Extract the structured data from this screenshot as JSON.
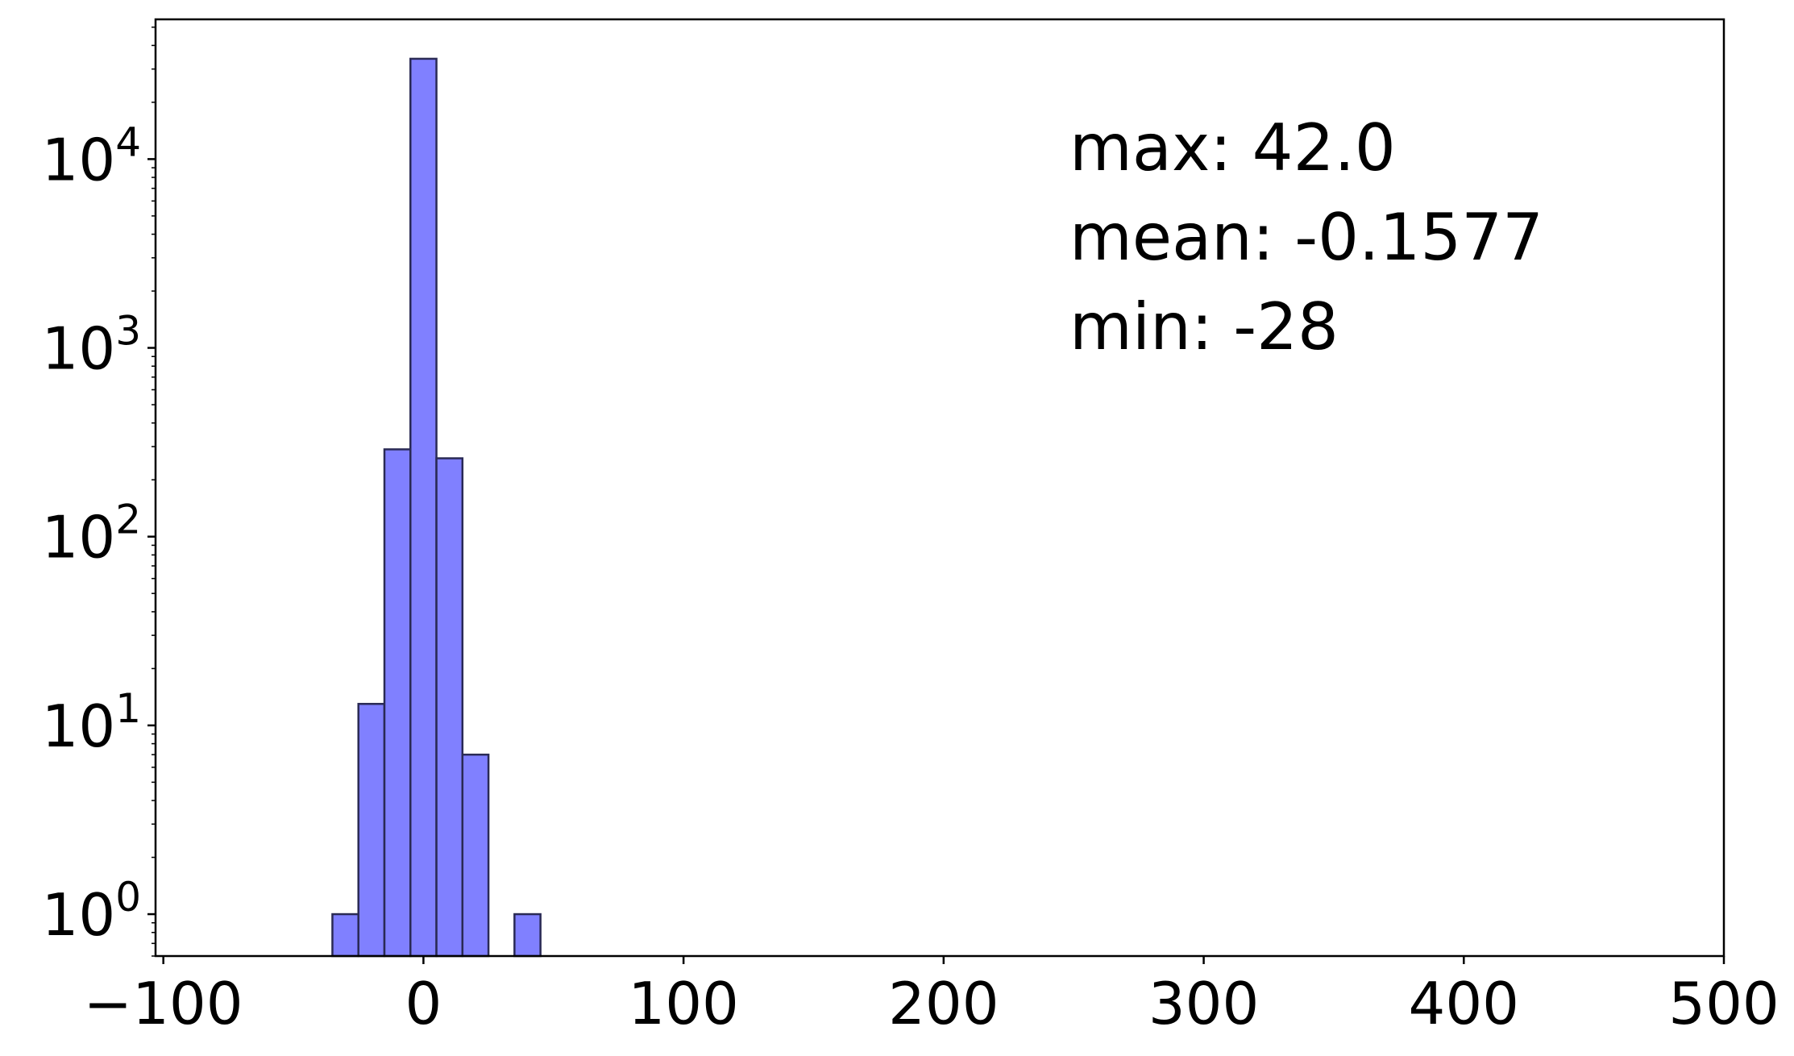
{
  "chart_data": {
    "type": "bar",
    "yscale": "log",
    "xlim": [
      -103,
      500
    ],
    "ylim": [
      0.6,
      55000
    ],
    "x_ticks": [
      {
        "value": -100,
        "label": "−100"
      },
      {
        "value": 0,
        "label": "0"
      },
      {
        "value": 100,
        "label": "100"
      },
      {
        "value": 200,
        "label": "200"
      },
      {
        "value": 300,
        "label": "300"
      },
      {
        "value": 400,
        "label": "400"
      },
      {
        "value": 500,
        "label": "500"
      }
    ],
    "y_ticks": [
      {
        "value": 1,
        "base": "10",
        "exp": "0"
      },
      {
        "value": 10,
        "base": "10",
        "exp": "1"
      },
      {
        "value": 100,
        "base": "10",
        "exp": "2"
      },
      {
        "value": 1000,
        "base": "10",
        "exp": "3"
      },
      {
        "value": 10000,
        "base": "10",
        "exp": "4"
      }
    ],
    "bins": [
      {
        "x0": -35,
        "x1": -25,
        "count": 1
      },
      {
        "x0": -25,
        "x1": -15,
        "count": 13
      },
      {
        "x0": -15,
        "x1": -5,
        "count": 290
      },
      {
        "x0": -5,
        "x1": 5,
        "count": 34000
      },
      {
        "x0": 5,
        "x1": 15,
        "count": 260
      },
      {
        "x0": 15,
        "x1": 25,
        "count": 7
      },
      {
        "x0": 25,
        "x1": 35,
        "count": 0
      },
      {
        "x0": 35,
        "x1": 45,
        "count": 1
      }
    ],
    "bar_color": "#8080ff",
    "bar_edge_color": "#2a2a55",
    "annotations": {
      "max": "max: 42.0",
      "mean": "mean: -0.1577",
      "min": "min: -28"
    },
    "grid": false,
    "legend": "none"
  }
}
